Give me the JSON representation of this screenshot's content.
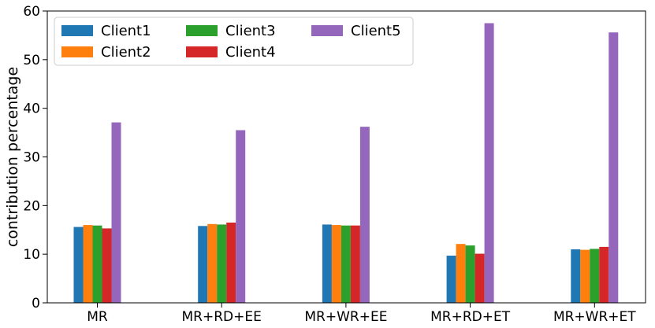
{
  "chart_data": {
    "type": "bar",
    "title": "",
    "xlabel": "",
    "ylabel": "contribution percentage",
    "ylim": [
      0,
      60
    ],
    "yticks": [
      0,
      10,
      20,
      30,
      40,
      50,
      60
    ],
    "grid": false,
    "legend_position": "top-left",
    "categories": [
      "MR",
      "MR+RD+EE",
      "MR+WR+EE",
      "MR+RD+ET",
      "MR+WR+ET"
    ],
    "series": [
      {
        "name": "Client1",
        "color": "#1f77b4",
        "values": [
          15.6,
          15.8,
          16.1,
          9.7,
          11.0
        ]
      },
      {
        "name": "Client2",
        "color": "#ff7f0e",
        "values": [
          16.0,
          16.2,
          16.0,
          12.1,
          10.9
        ]
      },
      {
        "name": "Client3",
        "color": "#2ca02c",
        "values": [
          15.9,
          16.1,
          15.9,
          11.8,
          11.1
        ]
      },
      {
        "name": "Client4",
        "color": "#d62728",
        "values": [
          15.3,
          16.5,
          15.9,
          10.1,
          11.5
        ]
      },
      {
        "name": "Client5",
        "color": "#9467bd",
        "values": [
          37.1,
          35.5,
          36.2,
          57.5,
          55.6
        ]
      }
    ]
  }
}
